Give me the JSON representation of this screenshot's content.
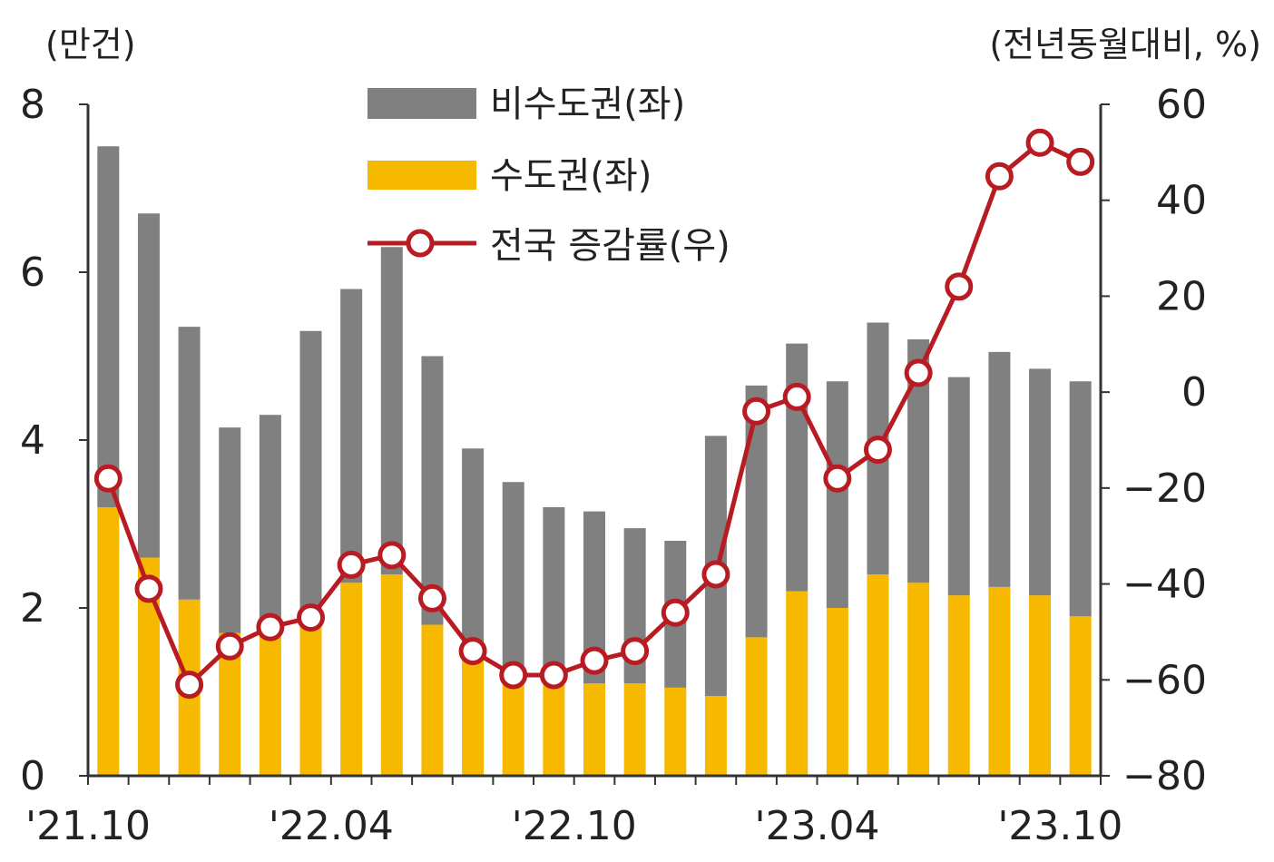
{
  "chart_data": {
    "type": "bar+line",
    "left_axis_unit": "(만건)",
    "right_axis_unit": "(전년동월대비, %)",
    "left_ticks": [
      "0",
      "2",
      "4",
      "6",
      "8"
    ],
    "right_ticks": [
      "−80",
      "−60",
      "−40",
      "−20",
      "0",
      "20",
      "40",
      "60"
    ],
    "ylim_left": [
      0,
      8
    ],
    "ylim_right": [
      -80,
      60
    ],
    "x_labels": [
      {
        "index": 0,
        "label": "'21.10"
      },
      {
        "index": 6,
        "label": "'22.04"
      },
      {
        "index": 12,
        "label": "'22.10"
      },
      {
        "index": 18,
        "label": "'23.04"
      },
      {
        "index": 24,
        "label": "'23.10"
      }
    ],
    "categories": [
      "21.10",
      "21.11",
      "21.12",
      "22.01",
      "22.02",
      "22.03",
      "22.04",
      "22.05",
      "22.06",
      "22.07",
      "22.08",
      "22.09",
      "22.10",
      "22.11",
      "22.12",
      "23.01",
      "23.02",
      "23.03",
      "23.04",
      "23.05",
      "23.06",
      "23.07",
      "23.08",
      "23.09",
      "23.10"
    ],
    "series": [
      {
        "name": "수도권(좌)",
        "type": "bar",
        "color": "#F7B800",
        "values": [
          3.2,
          2.6,
          2.1,
          1.7,
          1.7,
          1.9,
          2.3,
          2.4,
          1.8,
          1.6,
          1.3,
          1.1,
          1.1,
          1.1,
          1.05,
          0.95,
          1.65,
          2.2,
          2.0,
          2.4,
          2.3,
          2.15,
          2.25,
          2.15,
          1.9
        ]
      },
      {
        "name": "비수도권(좌)",
        "type": "bar",
        "color": "#808080",
        "values": [
          4.3,
          4.1,
          3.25,
          2.45,
          2.6,
          3.4,
          3.5,
          3.9,
          3.2,
          2.3,
          2.2,
          2.1,
          2.05,
          1.85,
          1.75,
          3.1,
          3.0,
          2.95,
          2.7,
          3.0,
          2.9,
          2.6,
          2.8,
          2.7,
          2.8
        ]
      },
      {
        "name": "전국 증감률(우)",
        "type": "line",
        "color": "#B81C22",
        "values": [
          -18,
          -41,
          -61,
          -53,
          -49,
          -47,
          -36,
          -34,
          -43,
          -54,
          -59,
          -59,
          -56,
          -54,
          -46,
          -38,
          -4,
          -1,
          -18,
          -12,
          4,
          22,
          45,
          52,
          48
        ]
      }
    ],
    "legend": [
      {
        "label": "비수도권(좌)",
        "color": "#808080",
        "kind": "bar"
      },
      {
        "label": "수도권(좌)",
        "color": "#F7B800",
        "kind": "bar"
      },
      {
        "label": "전국 증감률(우)",
        "color": "#B81C22",
        "kind": "line"
      }
    ]
  }
}
